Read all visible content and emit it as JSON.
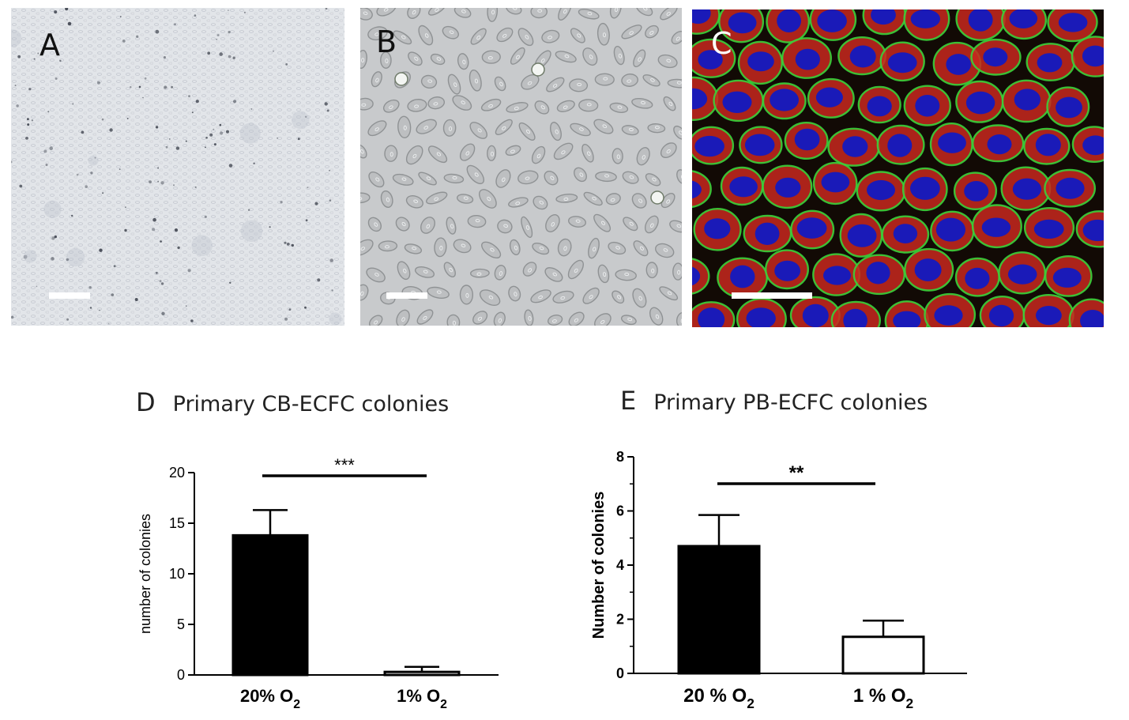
{
  "panels": {
    "A": {
      "letter": "A"
    },
    "B": {
      "letter": "B"
    },
    "C": {
      "letter": "C"
    }
  },
  "colors": {
    "black": "#000000",
    "white": "#ffffff",
    "nucleus_blue": "#1a1ab8",
    "membrane_green": "#3ad23a",
    "cytoplasm_red": "#c8281e"
  },
  "chart_data": [
    {
      "panel": "D",
      "type": "bar",
      "title": "Primary  CB-ECFC colonies",
      "ylabel": "number of colonies",
      "xlabel": "",
      "categories": [
        "20% O",
        "1% O"
      ],
      "category_subscripts": [
        "2",
        "2"
      ],
      "values": [
        13.8,
        0.3
      ],
      "errors": [
        2.5,
        0.5
      ],
      "bar_fill": [
        "#000000",
        "#ffffff"
      ],
      "ylim": [
        0,
        20
      ],
      "yticks": [
        0,
        5,
        10,
        15,
        20
      ],
      "significance": "***",
      "grid": false,
      "legend": "none"
    },
    {
      "panel": "E",
      "type": "bar",
      "title": "Primary  PB-ECFC colonies",
      "ylabel": "Number of colonies",
      "xlabel": "",
      "categories": [
        "20 %  O",
        "1 %  O"
      ],
      "category_subscripts": [
        "2",
        "2"
      ],
      "values": [
        4.7,
        1.35
      ],
      "errors": [
        1.15,
        0.6
      ],
      "bar_fill": [
        "#000000",
        "#ffffff"
      ],
      "ylim": [
        0,
        8
      ],
      "yticks": [
        0,
        2,
        4,
        6,
        8
      ],
      "significance": "**",
      "grid": false,
      "legend": "none"
    }
  ]
}
